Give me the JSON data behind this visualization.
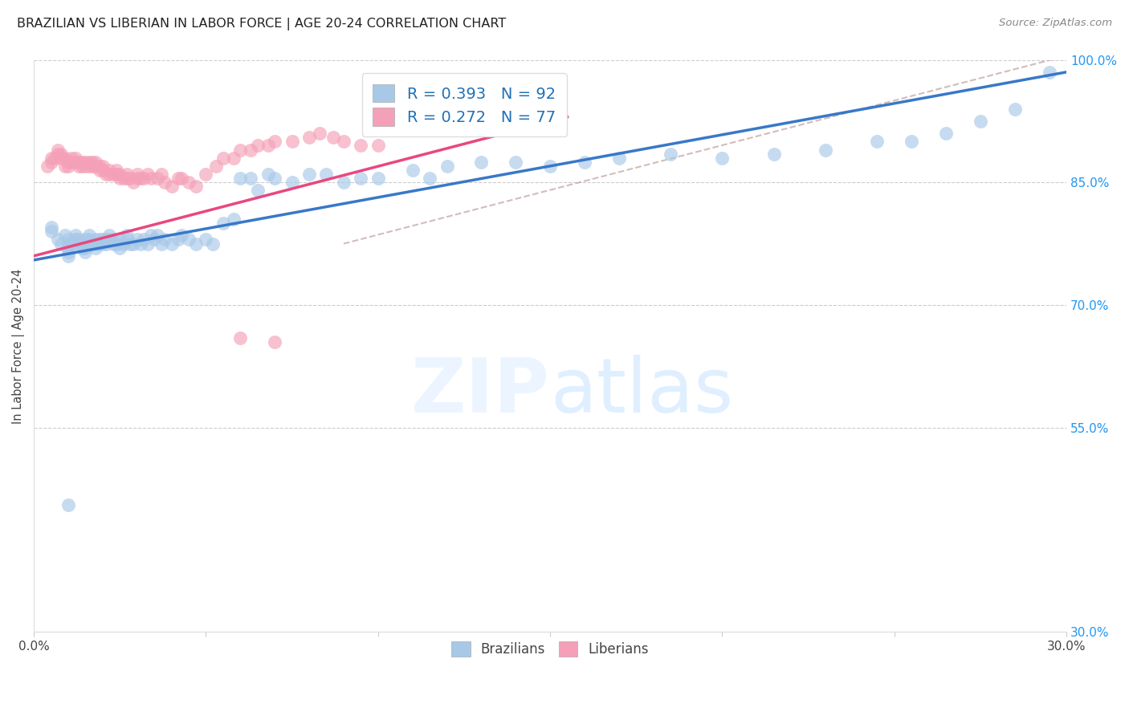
{
  "title": "BRAZILIAN VS LIBERIAN IN LABOR FORCE | AGE 20-24 CORRELATION CHART",
  "source": "Source: ZipAtlas.com",
  "ylabel": "In Labor Force | Age 20-24",
  "xmin": 0.0,
  "xmax": 0.3,
  "ymin": 0.3,
  "ymax": 1.0,
  "x_ticks": [
    0.0,
    0.05,
    0.1,
    0.15,
    0.2,
    0.25,
    0.3
  ],
  "y_ticks_right": [
    0.3,
    0.55,
    0.7,
    0.85,
    1.0
  ],
  "y_tick_labels_right": [
    "30.0%",
    "55.0%",
    "70.0%",
    "85.0%",
    "100.0%"
  ],
  "blue_color": "#a8c8e8",
  "pink_color": "#f4a0b8",
  "blue_line_color": "#3878c8",
  "pink_line_color": "#e84880",
  "dash_line_color": "#c0a0a0",
  "legend_blue_label": "R = 0.393   N = 92",
  "legend_pink_label": "R = 0.272   N = 77",
  "blue_line_x0": 0.0,
  "blue_line_y0": 0.755,
  "blue_line_x1": 0.3,
  "blue_line_y1": 0.985,
  "pink_line_x0": 0.0,
  "pink_line_y0": 0.76,
  "pink_line_x1": 0.155,
  "pink_line_y1": 0.93,
  "dash_line_x0": 0.09,
  "dash_line_y0": 0.775,
  "dash_line_x1": 0.3,
  "dash_line_y1": 1.005,
  "brazilian_x": [
    0.005,
    0.005,
    0.007,
    0.008,
    0.009,
    0.01,
    0.01,
    0.01,
    0.01,
    0.01,
    0.011,
    0.012,
    0.012,
    0.013,
    0.013,
    0.014,
    0.014,
    0.015,
    0.015,
    0.015,
    0.016,
    0.016,
    0.017,
    0.018,
    0.018,
    0.018,
    0.019,
    0.019,
    0.02,
    0.02,
    0.021,
    0.021,
    0.022,
    0.022,
    0.023,
    0.023,
    0.024,
    0.025,
    0.025,
    0.026,
    0.027,
    0.027,
    0.028,
    0.029,
    0.03,
    0.031,
    0.032,
    0.033,
    0.034,
    0.035,
    0.036,
    0.037,
    0.038,
    0.04,
    0.042,
    0.043,
    0.045,
    0.047,
    0.05,
    0.052,
    0.055,
    0.058,
    0.06,
    0.063,
    0.065,
    0.068,
    0.07,
    0.075,
    0.08,
    0.085,
    0.09,
    0.095,
    0.1,
    0.11,
    0.115,
    0.12,
    0.13,
    0.14,
    0.15,
    0.16,
    0.17,
    0.185,
    0.2,
    0.215,
    0.23,
    0.245,
    0.255,
    0.265,
    0.275,
    0.285,
    0.01,
    0.295
  ],
  "brazilian_y": [
    0.79,
    0.795,
    0.78,
    0.775,
    0.785,
    0.76,
    0.765,
    0.77,
    0.775,
    0.78,
    0.775,
    0.78,
    0.785,
    0.775,
    0.78,
    0.77,
    0.775,
    0.765,
    0.77,
    0.78,
    0.78,
    0.785,
    0.775,
    0.77,
    0.775,
    0.78,
    0.775,
    0.78,
    0.775,
    0.78,
    0.775,
    0.78,
    0.78,
    0.785,
    0.775,
    0.78,
    0.775,
    0.77,
    0.78,
    0.775,
    0.78,
    0.785,
    0.775,
    0.775,
    0.78,
    0.775,
    0.78,
    0.775,
    0.785,
    0.78,
    0.785,
    0.775,
    0.78,
    0.775,
    0.78,
    0.785,
    0.78,
    0.775,
    0.78,
    0.775,
    0.8,
    0.805,
    0.855,
    0.855,
    0.84,
    0.86,
    0.855,
    0.85,
    0.86,
    0.86,
    0.85,
    0.855,
    0.855,
    0.865,
    0.855,
    0.87,
    0.875,
    0.875,
    0.87,
    0.875,
    0.88,
    0.885,
    0.88,
    0.885,
    0.89,
    0.9,
    0.9,
    0.91,
    0.925,
    0.94,
    0.455,
    0.985
  ],
  "liberian_x": [
    0.004,
    0.005,
    0.005,
    0.006,
    0.007,
    0.007,
    0.008,
    0.008,
    0.009,
    0.009,
    0.01,
    0.01,
    0.011,
    0.011,
    0.012,
    0.012,
    0.013,
    0.013,
    0.014,
    0.014,
    0.015,
    0.015,
    0.016,
    0.016,
    0.017,
    0.017,
    0.018,
    0.018,
    0.019,
    0.019,
    0.02,
    0.02,
    0.021,
    0.022,
    0.022,
    0.023,
    0.024,
    0.024,
    0.025,
    0.025,
    0.026,
    0.027,
    0.027,
    0.028,
    0.029,
    0.03,
    0.03,
    0.031,
    0.032,
    0.033,
    0.034,
    0.036,
    0.037,
    0.038,
    0.04,
    0.042,
    0.043,
    0.045,
    0.047,
    0.05,
    0.053,
    0.055,
    0.058,
    0.06,
    0.063,
    0.065,
    0.068,
    0.07,
    0.075,
    0.08,
    0.083,
    0.087,
    0.09,
    0.095,
    0.1,
    0.06,
    0.07
  ],
  "liberian_y": [
    0.87,
    0.875,
    0.88,
    0.88,
    0.885,
    0.89,
    0.88,
    0.885,
    0.88,
    0.87,
    0.87,
    0.875,
    0.88,
    0.875,
    0.875,
    0.88,
    0.87,
    0.875,
    0.87,
    0.875,
    0.87,
    0.875,
    0.87,
    0.875,
    0.87,
    0.875,
    0.87,
    0.875,
    0.865,
    0.87,
    0.865,
    0.87,
    0.86,
    0.86,
    0.865,
    0.86,
    0.86,
    0.865,
    0.86,
    0.855,
    0.855,
    0.855,
    0.86,
    0.855,
    0.85,
    0.855,
    0.86,
    0.855,
    0.855,
    0.86,
    0.855,
    0.855,
    0.86,
    0.85,
    0.845,
    0.855,
    0.855,
    0.85,
    0.845,
    0.86,
    0.87,
    0.88,
    0.88,
    0.89,
    0.89,
    0.895,
    0.895,
    0.9,
    0.9,
    0.905,
    0.91,
    0.905,
    0.9,
    0.895,
    0.895,
    0.66,
    0.655
  ]
}
